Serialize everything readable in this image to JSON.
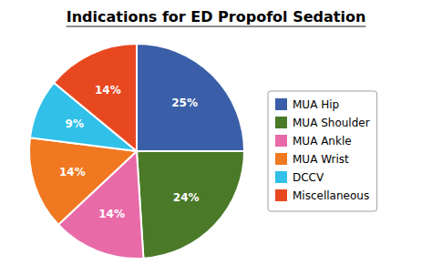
{
  "chart_data": {
    "type": "pie",
    "title": "Indications for ED Propofol Sedation",
    "categories": [
      "MUA Hip",
      "MUA Shoulder",
      "MUA Ankle",
      "MUA Wrist",
      "DCCV",
      "Miscellaneous"
    ],
    "values": [
      25,
      24,
      14,
      14,
      9,
      14
    ],
    "value_labels": [
      "25%",
      "24%",
      "14%",
      "14%",
      "9%",
      "14%"
    ],
    "colors": [
      "#3A5FA8",
      "#4A7A28",
      "#E86BA8",
      "#F07820",
      "#30C0E8",
      "#E84820"
    ],
    "data_labels": true,
    "legend": "right"
  }
}
